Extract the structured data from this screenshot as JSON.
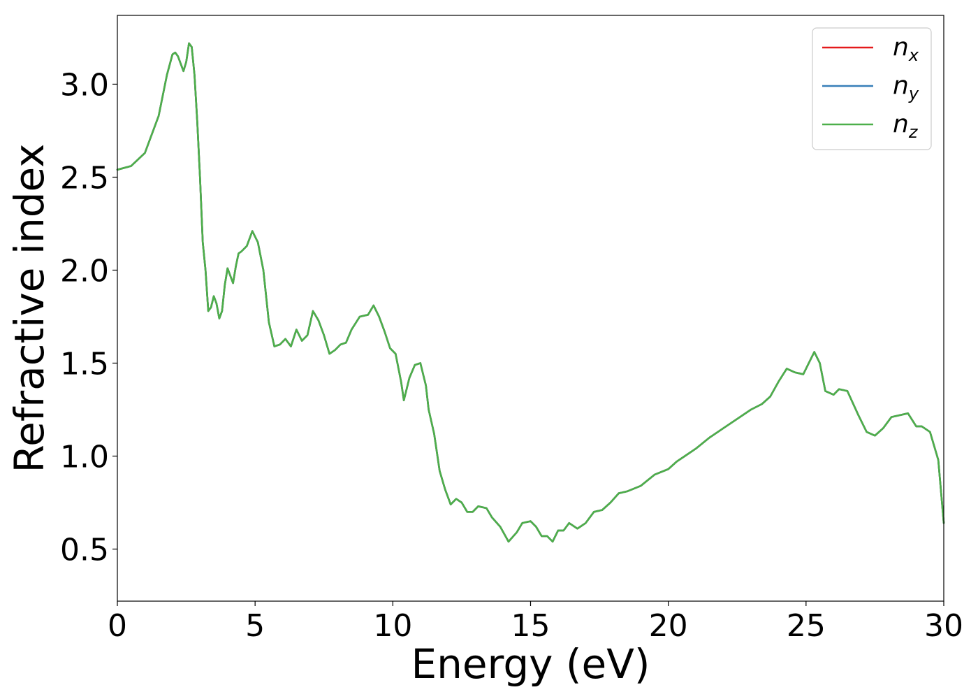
{
  "chart_data": {
    "type": "line",
    "title": "",
    "xlabel": "Energy (eV)",
    "ylabel": "Refractive index",
    "xlim": [
      0,
      30
    ],
    "ylim": [
      0.22,
      3.37
    ],
    "xticks": [
      "0",
      "5",
      "10",
      "15",
      "20",
      "25",
      "30"
    ],
    "xtick_values": [
      0,
      5,
      10,
      15,
      20,
      25,
      30
    ],
    "yticks": [
      "0.5",
      "1.0",
      "1.5",
      "2.0",
      "2.5",
      "3.0"
    ],
    "ytick_values": [
      0.5,
      1.0,
      1.5,
      2.0,
      2.5,
      3.0
    ],
    "grid": false,
    "legend_position": "top-right",
    "x": [
      0,
      0.5,
      1.0,
      1.5,
      1.8,
      2.0,
      2.1,
      2.2,
      2.4,
      2.5,
      2.6,
      2.7,
      2.8,
      2.9,
      3.0,
      3.1,
      3.2,
      3.3,
      3.4,
      3.5,
      3.6,
      3.7,
      3.8,
      3.9,
      4.0,
      4.2,
      4.3,
      4.4,
      4.5,
      4.7,
      4.9,
      5.1,
      5.3,
      5.5,
      5.7,
      5.9,
      6.1,
      6.3,
      6.5,
      6.7,
      6.9,
      7.1,
      7.3,
      7.5,
      7.7,
      7.9,
      8.1,
      8.3,
      8.5,
      8.8,
      9.1,
      9.3,
      9.5,
      9.7,
      9.9,
      10.1,
      10.3,
      10.4,
      10.6,
      10.8,
      11.0,
      11.2,
      11.3,
      11.5,
      11.7,
      11.9,
      12.1,
      12.3,
      12.5,
      12.7,
      12.9,
      13.1,
      13.4,
      13.6,
      13.9,
      14.2,
      14.5,
      14.7,
      15.0,
      15.2,
      15.4,
      15.6,
      15.8,
      16.0,
      16.2,
      16.4,
      16.7,
      17.0,
      17.3,
      17.6,
      17.9,
      18.2,
      18.5,
      19.0,
      19.5,
      20.0,
      20.3,
      20.6,
      21.0,
      21.5,
      22.0,
      22.5,
      23.0,
      23.4,
      23.7,
      24.0,
      24.3,
      24.6,
      24.9,
      25.1,
      25.3,
      25.5,
      25.7,
      26.0,
      26.2,
      26.5,
      26.9,
      27.2,
      27.5,
      27.8,
      28.1,
      28.4,
      28.7,
      29.0,
      29.2,
      29.5,
      29.8,
      30.0
    ],
    "series": [
      {
        "name": "n_x",
        "color": "#e41a1c",
        "values": [
          2.54,
          2.56,
          2.63,
          2.83,
          3.05,
          3.16,
          3.17,
          3.15,
          3.07,
          3.12,
          3.22,
          3.2,
          3.05,
          2.8,
          2.5,
          2.15,
          2.0,
          1.78,
          1.8,
          1.86,
          1.82,
          1.74,
          1.78,
          1.92,
          2.01,
          1.93,
          2.02,
          2.09,
          2.1,
          2.13,
          2.21,
          2.15,
          2.0,
          1.72,
          1.59,
          1.6,
          1.63,
          1.59,
          1.68,
          1.62,
          1.65,
          1.78,
          1.73,
          1.65,
          1.55,
          1.57,
          1.6,
          1.61,
          1.68,
          1.75,
          1.76,
          1.81,
          1.75,
          1.67,
          1.58,
          1.55,
          1.4,
          1.3,
          1.42,
          1.49,
          1.5,
          1.38,
          1.25,
          1.12,
          0.92,
          0.82,
          0.74,
          0.77,
          0.75,
          0.7,
          0.7,
          0.73,
          0.72,
          0.67,
          0.62,
          0.54,
          0.59,
          0.64,
          0.65,
          0.62,
          0.57,
          0.57,
          0.54,
          0.6,
          0.6,
          0.64,
          0.61,
          0.64,
          0.7,
          0.71,
          0.75,
          0.8,
          0.81,
          0.84,
          0.9,
          0.93,
          0.97,
          1.0,
          1.04,
          1.1,
          1.15,
          1.2,
          1.25,
          1.28,
          1.32,
          1.4,
          1.47,
          1.45,
          1.44,
          1.5,
          1.56,
          1.5,
          1.35,
          1.33,
          1.36,
          1.35,
          1.22,
          1.13,
          1.11,
          1.15,
          1.21,
          1.22,
          1.23,
          1.16,
          1.16,
          1.13,
          0.98,
          0.64
        ]
      },
      {
        "name": "n_y",
        "color": "#377eb8",
        "values": [
          2.54,
          2.56,
          2.63,
          2.83,
          3.05,
          3.16,
          3.17,
          3.15,
          3.07,
          3.12,
          3.22,
          3.2,
          3.05,
          2.8,
          2.5,
          2.15,
          2.0,
          1.78,
          1.8,
          1.86,
          1.82,
          1.74,
          1.78,
          1.92,
          2.01,
          1.93,
          2.02,
          2.09,
          2.1,
          2.13,
          2.21,
          2.15,
          2.0,
          1.72,
          1.59,
          1.6,
          1.63,
          1.59,
          1.68,
          1.62,
          1.65,
          1.78,
          1.73,
          1.65,
          1.55,
          1.57,
          1.6,
          1.61,
          1.68,
          1.75,
          1.76,
          1.81,
          1.75,
          1.67,
          1.58,
          1.55,
          1.4,
          1.3,
          1.42,
          1.49,
          1.5,
          1.38,
          1.25,
          1.12,
          0.92,
          0.82,
          0.74,
          0.77,
          0.75,
          0.7,
          0.7,
          0.73,
          0.72,
          0.67,
          0.62,
          0.54,
          0.59,
          0.64,
          0.65,
          0.62,
          0.57,
          0.57,
          0.54,
          0.6,
          0.6,
          0.64,
          0.61,
          0.64,
          0.7,
          0.71,
          0.75,
          0.8,
          0.81,
          0.84,
          0.9,
          0.93,
          0.97,
          1.0,
          1.04,
          1.1,
          1.15,
          1.2,
          1.25,
          1.28,
          1.32,
          1.4,
          1.47,
          1.45,
          1.44,
          1.5,
          1.56,
          1.5,
          1.35,
          1.33,
          1.36,
          1.35,
          1.22,
          1.13,
          1.11,
          1.15,
          1.21,
          1.22,
          1.23,
          1.16,
          1.16,
          1.13,
          0.98,
          0.64
        ]
      },
      {
        "name": "n_z",
        "color": "#4daf4a",
        "values": [
          2.54,
          2.56,
          2.63,
          2.83,
          3.05,
          3.16,
          3.17,
          3.15,
          3.07,
          3.12,
          3.22,
          3.2,
          3.05,
          2.8,
          2.5,
          2.15,
          2.0,
          1.78,
          1.8,
          1.86,
          1.82,
          1.74,
          1.78,
          1.92,
          2.01,
          1.93,
          2.02,
          2.09,
          2.1,
          2.13,
          2.21,
          2.15,
          2.0,
          1.72,
          1.59,
          1.6,
          1.63,
          1.59,
          1.68,
          1.62,
          1.65,
          1.78,
          1.73,
          1.65,
          1.55,
          1.57,
          1.6,
          1.61,
          1.68,
          1.75,
          1.76,
          1.81,
          1.75,
          1.67,
          1.58,
          1.55,
          1.4,
          1.3,
          1.42,
          1.49,
          1.5,
          1.38,
          1.25,
          1.12,
          0.92,
          0.82,
          0.74,
          0.77,
          0.75,
          0.7,
          0.7,
          0.73,
          0.72,
          0.67,
          0.62,
          0.54,
          0.59,
          0.64,
          0.65,
          0.62,
          0.57,
          0.57,
          0.54,
          0.6,
          0.6,
          0.64,
          0.61,
          0.64,
          0.7,
          0.71,
          0.75,
          0.8,
          0.81,
          0.84,
          0.9,
          0.93,
          0.97,
          1.0,
          1.04,
          1.1,
          1.15,
          1.2,
          1.25,
          1.28,
          1.32,
          1.4,
          1.47,
          1.45,
          1.44,
          1.5,
          1.56,
          1.5,
          1.35,
          1.33,
          1.36,
          1.35,
          1.22,
          1.13,
          1.11,
          1.15,
          1.21,
          1.22,
          1.23,
          1.16,
          1.16,
          1.13,
          0.98,
          0.64
        ]
      }
    ],
    "legend": [
      {
        "symbol": "n",
        "subscript": "x",
        "color": "#e41a1c"
      },
      {
        "symbol": "n",
        "subscript": "y",
        "color": "#377eb8"
      },
      {
        "symbol": "n",
        "subscript": "z",
        "color": "#4daf4a"
      }
    ]
  }
}
